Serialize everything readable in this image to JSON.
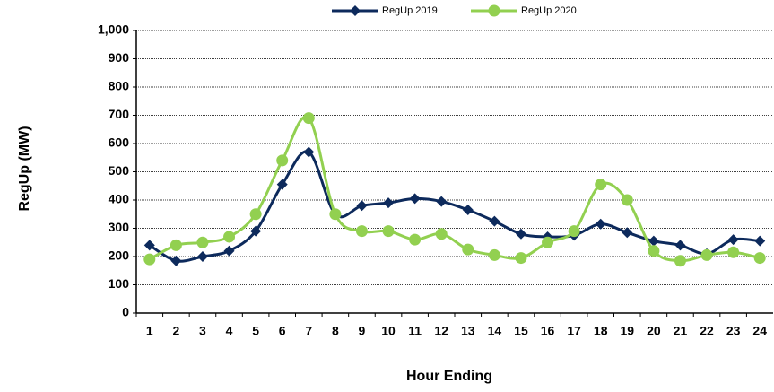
{
  "chart_data": {
    "type": "line",
    "x_label": "Hour Ending",
    "y_label": "RegUp (MW)",
    "categories": [
      "1",
      "2",
      "3",
      "4",
      "5",
      "6",
      "7",
      "8",
      "9",
      "10",
      "11",
      "12",
      "13",
      "14",
      "15",
      "16",
      "17",
      "18",
      "19",
      "20",
      "21",
      "22",
      "23",
      "24"
    ],
    "series": [
      {
        "name": "RegUp 2019",
        "color": "#0d2a5c",
        "marker": "diamond",
        "values": [
          240,
          185,
          200,
          220,
          290,
          455,
          570,
          350,
          380,
          390,
          405,
          395,
          365,
          325,
          280,
          270,
          275,
          315,
          285,
          255,
          240,
          210,
          260,
          255
        ]
      },
      {
        "name": "RegUp 2020",
        "color": "#92d050",
        "marker": "circle",
        "values": [
          190,
          240,
          250,
          270,
          350,
          540,
          690,
          350,
          290,
          290,
          260,
          280,
          225,
          205,
          195,
          250,
          290,
          455,
          400,
          220,
          185,
          205,
          215,
          195
        ]
      }
    ],
    "ylim": [
      0,
      1000
    ],
    "yticks": [
      0,
      100,
      200,
      300,
      400,
      500,
      600,
      700,
      800,
      900,
      {
        "value": 1000,
        "label": "1,000"
      }
    ],
    "grid": true,
    "legend": "top"
  }
}
